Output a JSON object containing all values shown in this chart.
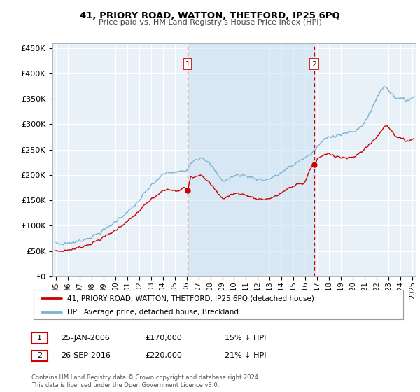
{
  "title": "41, PRIORY ROAD, WATTON, THETFORD, IP25 6PQ",
  "subtitle": "Price paid vs. HM Land Registry's House Price Index (HPI)",
  "hpi_label": "HPI: Average price, detached house, Breckland",
  "price_label": "41, PRIORY ROAD, WATTON, THETFORD, IP25 6PQ (detached house)",
  "footer1": "Contains HM Land Registry data © Crown copyright and database right 2024.",
  "footer2": "This data is licensed under the Open Government Licence v3.0.",
  "sale1_date": "25-JAN-2006",
  "sale1_price": 170000,
  "sale1_pct": "15% ↓ HPI",
  "sale2_date": "26-SEP-2016",
  "sale2_price": 220000,
  "sale2_pct": "21% ↓ HPI",
  "sale1_year": 2006.07,
  "sale2_year": 2016.73,
  "ylim": [
    0,
    460000
  ],
  "xlim_start": 1994.7,
  "xlim_end": 2025.3,
  "hpi_color": "#7ab3d4",
  "price_color": "#cc0000",
  "bg_color": "#e8f0f8",
  "grid_color": "#ffffff",
  "shade_color": "#c8dff0"
}
